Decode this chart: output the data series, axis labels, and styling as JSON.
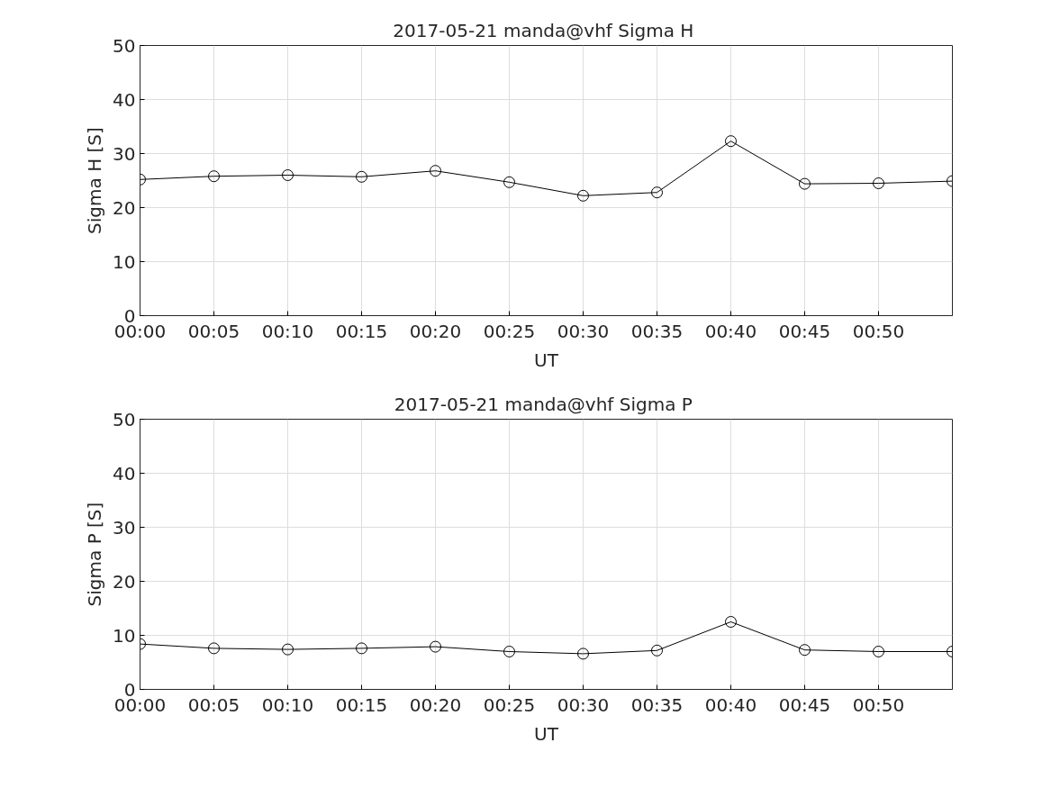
{
  "chart_data": [
    {
      "type": "line",
      "title": "2017-05-21  manda@vhf Sigma H",
      "xlabel": "UT",
      "ylabel": "Sigma H [S]",
      "color": "#000000",
      "marker": "circle",
      "line_style": "solid",
      "grid": true,
      "x": [
        "2017-05-21T00:00",
        "2017-05-21T00:05",
        "2017-05-21T00:10",
        "2017-05-21T00:15",
        "2017-05-21T00:20",
        "2017-05-21T00:25",
        "2017-05-21T00:30",
        "2017-05-21T00:35",
        "2017-05-21T00:40",
        "2017-05-21T00:45",
        "2017-05-21T00:50",
        "2017-05-21T00:55"
      ],
      "values": [
        25.2,
        25.8,
        26.0,
        25.7,
        26.8,
        24.7,
        22.2,
        22.8,
        32.3,
        24.4,
        24.5,
        24.9
      ],
      "xlim": [
        "2017-05-21T00:00",
        "2017-05-21T00:55"
      ],
      "xticks": [
        {
          "value": "2017-05-21T00:00",
          "label": "00:00"
        },
        {
          "value": "2017-05-21T00:05",
          "label": "00:05"
        },
        {
          "value": "2017-05-21T00:10",
          "label": "00:10"
        },
        {
          "value": "2017-05-21T00:15",
          "label": "00:15"
        },
        {
          "value": "2017-05-21T00:20",
          "label": "00:20"
        },
        {
          "value": "2017-05-21T00:25",
          "label": "00:25"
        },
        {
          "value": "2017-05-21T00:30",
          "label": "00:30"
        },
        {
          "value": "2017-05-21T00:35",
          "label": "00:35"
        },
        {
          "value": "2017-05-21T00:40",
          "label": "00:40"
        },
        {
          "value": "2017-05-21T00:45",
          "label": "00:45"
        },
        {
          "value": "2017-05-21T00:50",
          "label": "00:50"
        }
      ],
      "ylim": [
        0,
        50
      ],
      "yticks": [
        0,
        10,
        20,
        30,
        40,
        50
      ]
    },
    {
      "type": "line",
      "title": "2017-05-21  manda@vhf Sigma P",
      "xlabel": "UT",
      "ylabel": "Sigma P [S]",
      "color": "#000000",
      "marker": "circle",
      "line_style": "solid",
      "grid": true,
      "x": [
        "2017-05-21T00:00",
        "2017-05-21T00:05",
        "2017-05-21T00:10",
        "2017-05-21T00:15",
        "2017-05-21T00:20",
        "2017-05-21T00:25",
        "2017-05-21T00:30",
        "2017-05-21T00:35",
        "2017-05-21T00:40",
        "2017-05-21T00:45",
        "2017-05-21T00:50",
        "2017-05-21T00:55"
      ],
      "values": [
        8.4,
        7.6,
        7.4,
        7.6,
        7.9,
        7.0,
        6.6,
        7.2,
        12.5,
        7.3,
        7.0,
        7.0
      ],
      "xlim": [
        "2017-05-21T00:00",
        "2017-05-21T00:55"
      ],
      "xticks": [
        {
          "value": "2017-05-21T00:00",
          "label": "00:00"
        },
        {
          "value": "2017-05-21T00:05",
          "label": "00:05"
        },
        {
          "value": "2017-05-21T00:10",
          "label": "00:10"
        },
        {
          "value": "2017-05-21T00:15",
          "label": "00:15"
        },
        {
          "value": "2017-05-21T00:20",
          "label": "00:20"
        },
        {
          "value": "2017-05-21T00:25",
          "label": "00:25"
        },
        {
          "value": "2017-05-21T00:30",
          "label": "00:30"
        },
        {
          "value": "2017-05-21T00:35",
          "label": "00:35"
        },
        {
          "value": "2017-05-21T00:40",
          "label": "00:40"
        },
        {
          "value": "2017-05-21T00:45",
          "label": "00:45"
        },
        {
          "value": "2017-05-21T00:50",
          "label": "00:50"
        }
      ],
      "ylim": [
        0,
        50
      ],
      "yticks": [
        0,
        10,
        20,
        30,
        40,
        50
      ]
    }
  ]
}
